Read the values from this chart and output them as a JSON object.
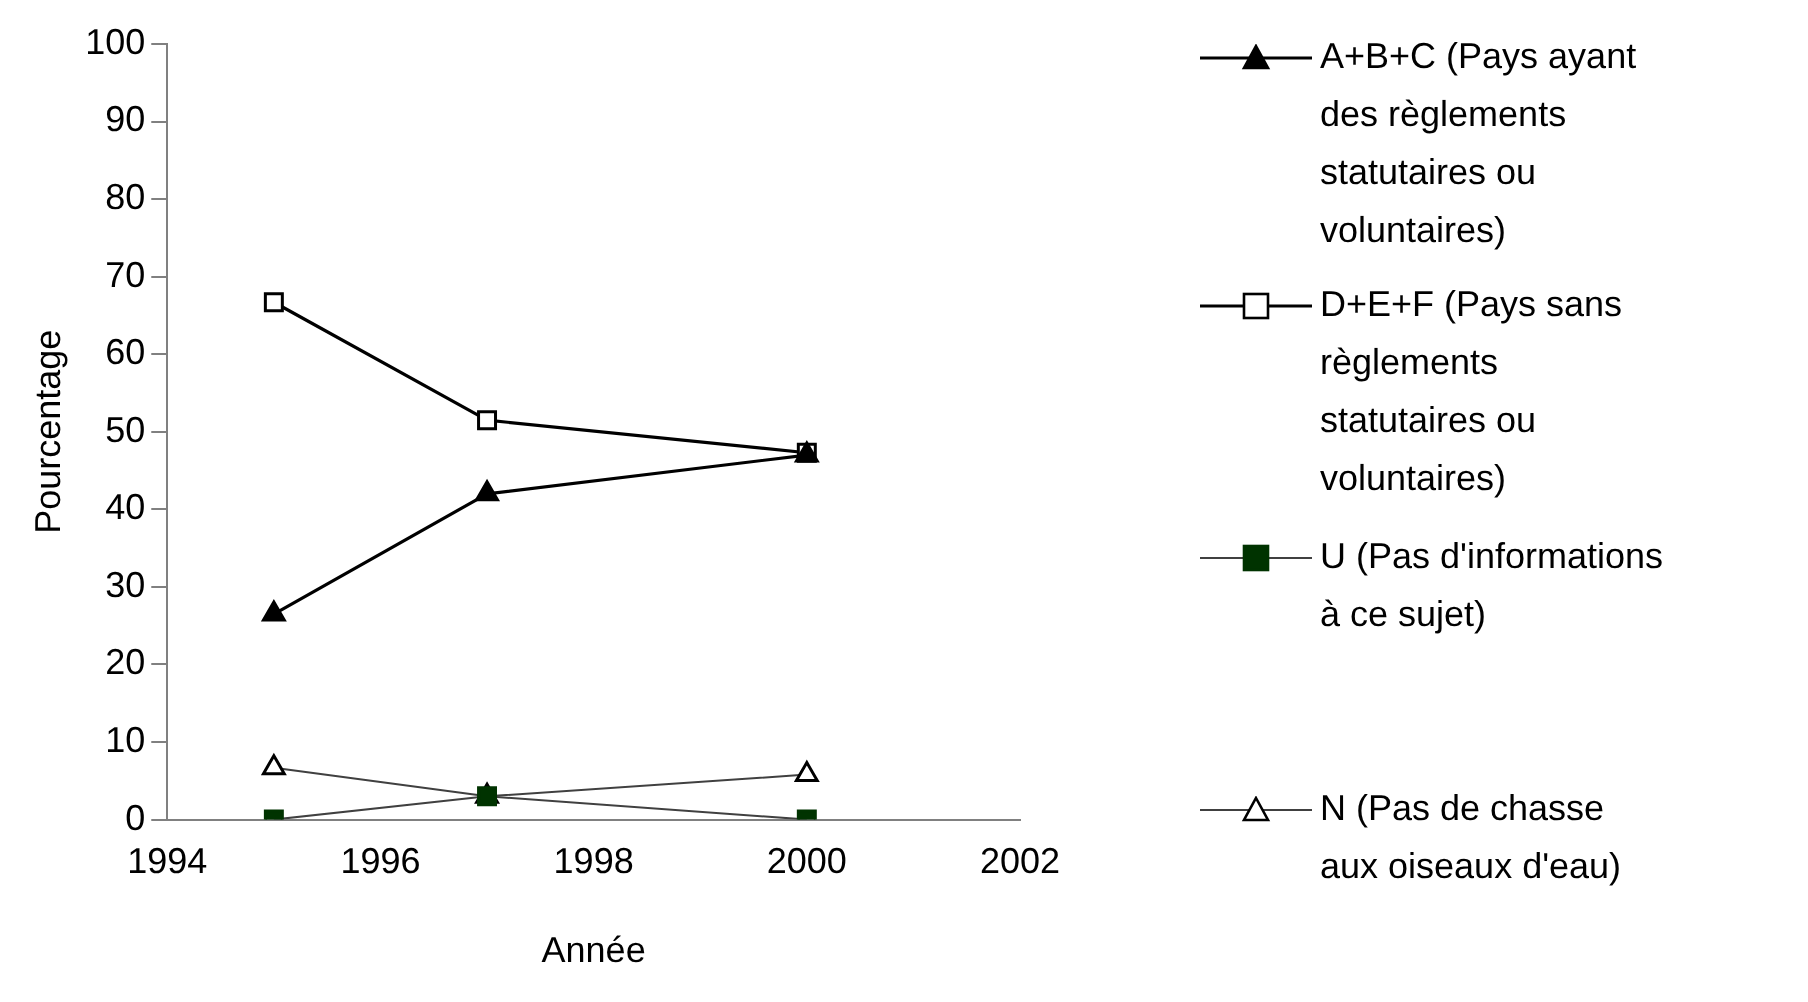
{
  "chart_data": {
    "type": "line",
    "xlabel": "Année",
    "ylabel": "Pourcentage",
    "x": [
      1995,
      1997,
      2000
    ],
    "series": [
      {
        "name": "A+B+C (Pays ayant des règlements statutaires ou voluntaires)",
        "color": "#000000",
        "marker": "triangle",
        "values": [
          26.5,
          42,
          47
        ]
      },
      {
        "name": "D+E+F (Pays sans règlements statutaires ou voluntaires)",
        "color": "#000000",
        "marker": "square",
        "values": [
          66.7,
          51.5,
          47.3
        ]
      },
      {
        "name": "U (Pas d'informations à ce sujet)",
        "color": "#003300",
        "marker": "square",
        "values": [
          0,
          3,
          0
        ]
      },
      {
        "name": "N (Pas de chasse aux oiseaux d'eau)",
        "color": "#000000",
        "marker": "triangle",
        "values": [
          6.7,
          3,
          5.8
        ]
      }
    ],
    "xlim": [
      1994,
      2002
    ],
    "xticks": [
      1994,
      1996,
      1998,
      2000,
      2002
    ],
    "ylim": [
      0,
      100
    ],
    "yticks": [
      0,
      10,
      20,
      30,
      40,
      50,
      60,
      70,
      80,
      90,
      100
    ],
    "grid": false,
    "legend": "right",
    "line_style": "solid"
  }
}
